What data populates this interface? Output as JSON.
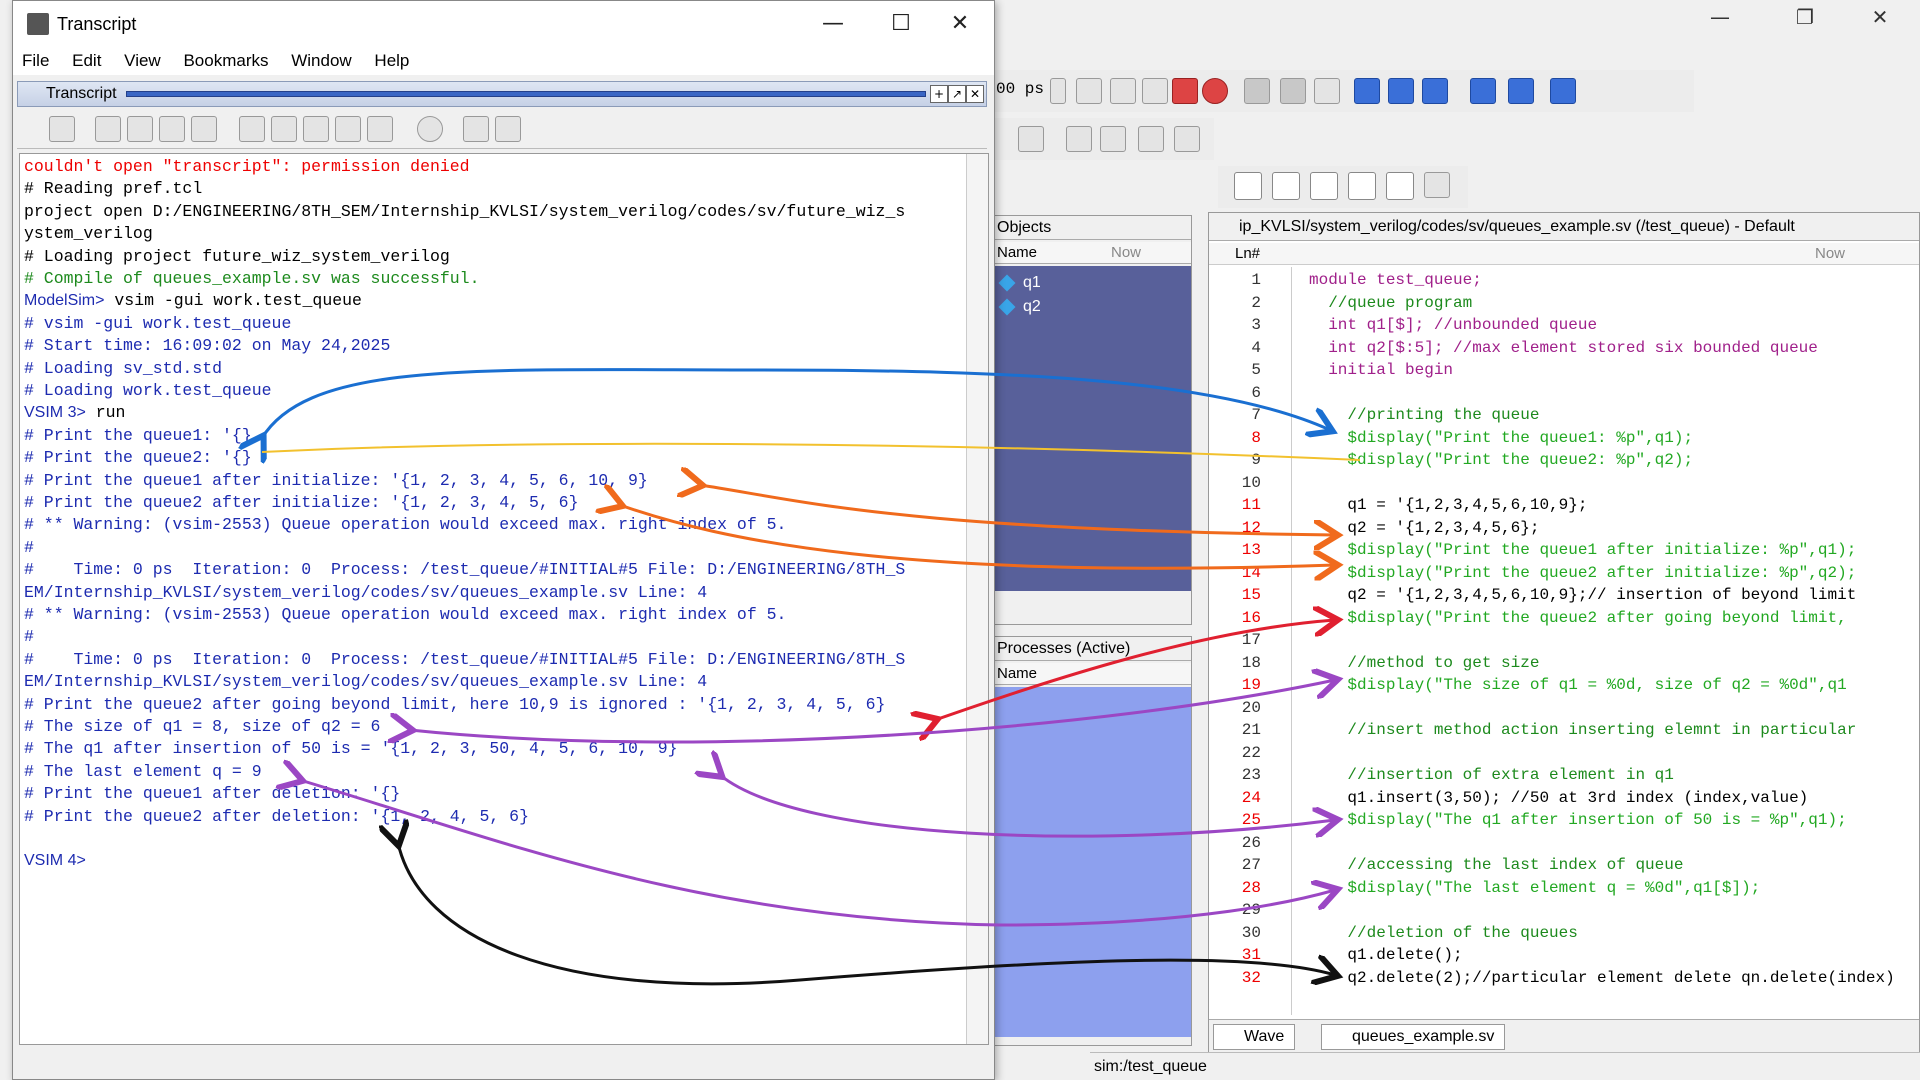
{
  "main_window": {
    "controls": {
      "minimize": "—",
      "restore": "❐",
      "close": "✕"
    },
    "toolbar": {
      "time_value": "00 ps"
    }
  },
  "objects_pane": {
    "title": "Objects",
    "column": "Name",
    "now_label": "Now",
    "items": [
      "q1",
      "q2"
    ]
  },
  "processes_pane": {
    "title": "Processes (Active)",
    "column": "Name"
  },
  "source_pane": {
    "title": "ip_KVLSI/system_verilog/codes/sv/queues_example.sv (/test_queue) - Default",
    "column": "Ln#",
    "now_label": "Now",
    "lines": [
      {
        "n": "1",
        "text": "module test_queue;",
        "style": "kw"
      },
      {
        "n": "2",
        "text": "  //queue program",
        "style": "cm"
      },
      {
        "n": "3",
        "text": "  int q1[$]; //unbounded queue",
        "style": "kw"
      },
      {
        "n": "4",
        "text": "  int q2[$:5]; //max element stored six bounded queue",
        "style": "kw"
      },
      {
        "n": "5",
        "text": "  initial begin",
        "style": "kw"
      },
      {
        "n": "6",
        "text": "",
        "style": ""
      },
      {
        "n": "7",
        "text": "    //printing the queue",
        "style": "cm"
      },
      {
        "n": "8",
        "text": "    $display(\"Print the queue1: %p\",q1);",
        "style": "dp"
      },
      {
        "n": "9",
        "text": "    $display(\"Print the queue2: %p\",q2);",
        "style": "dp"
      },
      {
        "n": "10",
        "text": "",
        "style": ""
      },
      {
        "n": "11",
        "text": "    q1 = '{1,2,3,4,5,6,10,9};",
        "style": ""
      },
      {
        "n": "12",
        "text": "    q2 = '{1,2,3,4,5,6};",
        "style": ""
      },
      {
        "n": "13",
        "text": "    $display(\"Print the queue1 after initialize: %p\",q1);",
        "style": "dp"
      },
      {
        "n": "14",
        "text": "    $display(\"Print the queue2 after initialize: %p\",q2);",
        "style": "dp"
      },
      {
        "n": "15",
        "text": "    q2 = '{1,2,3,4,5,6,10,9};// insertion of beyond limit",
        "style": ""
      },
      {
        "n": "16",
        "text": "    $display(\"Print the queue2 after going beyond limit, ",
        "style": "dp"
      },
      {
        "n": "17",
        "text": "",
        "style": ""
      },
      {
        "n": "18",
        "text": "    //method to get size",
        "style": "cm"
      },
      {
        "n": "19",
        "text": "    $display(\"The size of q1 = %0d, size of q2 = %0d\",q1",
        "style": "dp"
      },
      {
        "n": "20",
        "text": "",
        "style": ""
      },
      {
        "n": "21",
        "text": "    //insert method action inserting elemnt in particular",
        "style": "cm"
      },
      {
        "n": "22",
        "text": "",
        "style": ""
      },
      {
        "n": "23",
        "text": "    //insertion of extra element in q1",
        "style": "cm"
      },
      {
        "n": "24",
        "text": "    q1.insert(3,50); //50 at 3rd index (index,value)",
        "style": ""
      },
      {
        "n": "25",
        "text": "    $display(\"The q1 after insertion of 50 is = %p\",q1);",
        "style": "dp"
      },
      {
        "n": "26",
        "text": "",
        "style": ""
      },
      {
        "n": "27",
        "text": "    //accessing the last index of queue",
        "style": "cm"
      },
      {
        "n": "28",
        "text": "    $display(\"The last element q = %0d\",q1[$]);",
        "style": "dp"
      },
      {
        "n": "29",
        "text": "",
        "style": ""
      },
      {
        "n": "30",
        "text": "    //deletion of the queues",
        "style": "cm"
      },
      {
        "n": "31",
        "text": "    q1.delete();",
        "style": ""
      },
      {
        "n": "32",
        "text": "    q2.delete(2);//particular element delete qn.delete(index)",
        "style": ""
      }
    ],
    "tabs": [
      "Wave",
      "queues_example.sv"
    ]
  },
  "status_bar": {
    "text": "sim:/test_queue"
  },
  "transcript_window": {
    "title": "Transcript",
    "controls": {
      "minimize": "—",
      "maximize": "☐",
      "close": "✕"
    },
    "menu": [
      "File",
      "Edit",
      "View",
      "Bookmarks",
      "Window",
      "Help"
    ],
    "subtitle": "Transcript",
    "lines": [
      {
        "text": "couldn't open \"transcript\": permission denied",
        "style": "red"
      },
      {
        "text": "# Reading pref.tcl",
        "style": "blk"
      },
      {
        "text": "project open D:/ENGINEERING/8TH_SEM/Internship_KVLSI/system_verilog/codes/sv/future_wiz_s",
        "style": "blk"
      },
      {
        "text": "ystem_verilog",
        "style": "blk"
      },
      {
        "text": "# Loading project future_wiz_system_verilog",
        "style": "blk"
      },
      {
        "text": "# Compile of queues_example.sv was successful.",
        "style": "grn"
      },
      {
        "prompt": "ModelSim>",
        "text": " vsim -gui work.test_queue",
        "style": "prm"
      },
      {
        "text": "# vsim -gui work.test_queue",
        "style": ""
      },
      {
        "text": "# Start time: 16:09:02 on May 24,2025",
        "style": ""
      },
      {
        "text": "# Loading sv_std.std",
        "style": ""
      },
      {
        "text": "# Loading work.test_queue",
        "style": ""
      },
      {
        "prompt": "VSIM 3>",
        "text": " run",
        "style": "prm"
      },
      {
        "text": "# Print the queue1: '{}",
        "style": ""
      },
      {
        "text": "# Print the queue2: '{}",
        "style": ""
      },
      {
        "text": "# Print the queue1 after initialize: '{1, 2, 3, 4, 5, 6, 10, 9}",
        "style": ""
      },
      {
        "text": "# Print the queue2 after initialize: '{1, 2, 3, 4, 5, 6}",
        "style": ""
      },
      {
        "text": "# ** Warning: (vsim-2553) Queue operation would exceed max. right index of 5.",
        "style": ""
      },
      {
        "text": "#",
        "style": ""
      },
      {
        "text": "#    Time: 0 ps  Iteration: 0  Process: /test_queue/#INITIAL#5 File: D:/ENGINEERING/8TH_S",
        "style": ""
      },
      {
        "text": "EM/Internship_KVLSI/system_verilog/codes/sv/queues_example.sv Line: 4",
        "style": ""
      },
      {
        "text": "# ** Warning: (vsim-2553) Queue operation would exceed max. right index of 5.",
        "style": ""
      },
      {
        "text": "#",
        "style": ""
      },
      {
        "text": "#    Time: 0 ps  Iteration: 0  Process: /test_queue/#INITIAL#5 File: D:/ENGINEERING/8TH_S",
        "style": ""
      },
      {
        "text": "EM/Internship_KVLSI/system_verilog/codes/sv/queues_example.sv Line: 4",
        "style": ""
      },
      {
        "text": "# Print the queue2 after going beyond limit, here 10,9 is ignored : '{1, 2, 3, 4, 5, 6}",
        "style": ""
      },
      {
        "text": "# The size of q1 = 8, size of q2 = 6",
        "style": ""
      },
      {
        "text": "# The q1 after insertion of 50 is = '{1, 2, 3, 50, 4, 5, 6, 10, 9}",
        "style": ""
      },
      {
        "text": "# The last element q = 9",
        "style": ""
      },
      {
        "text": "# Print the queue1 after deletion: '{}",
        "style": ""
      },
      {
        "text": "# Print the queue2 after deletion: '{1, 2, 4, 5, 6}",
        "style": ""
      },
      {
        "text": "",
        "style": ""
      },
      {
        "prompt": "VSIM 4>",
        "text": "",
        "style": "prm"
      }
    ]
  },
  "annotation_colors": {
    "blue": "#1a6fd1",
    "yellow": "#f2c12e",
    "orange": "#f06a1c",
    "red": "#e02030",
    "purple": "#9b47c4",
    "black": "#111111"
  }
}
